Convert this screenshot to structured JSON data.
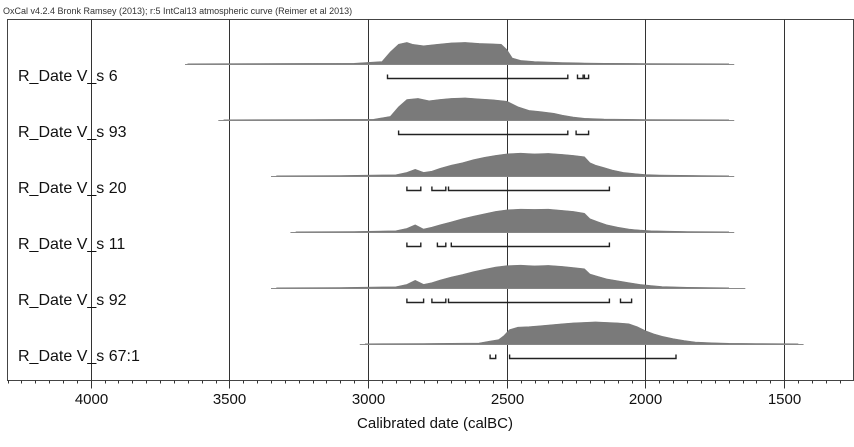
{
  "header_text": "OxCal v4.2.4 Bronk Ramsey (2013); r:5 IntCal13 atmospheric curve (Reimer et al 2013)",
  "chart_data": {
    "type": "area",
    "title": "",
    "xlabel": "Calibrated date (calBC)",
    "ylabel": "",
    "x_reversed": true,
    "xlim": [
      4300,
      1250
    ],
    "x_ticks": [
      4000,
      3500,
      3000,
      2500,
      2000,
      1500
    ],
    "x_tick_labels": [
      "4000",
      "3500",
      "3000",
      "2500",
      "2000",
      "1500"
    ],
    "grid": true,
    "colors": {
      "distribution": "#7a7a7a",
      "line": "#444444",
      "grid": "#333333"
    },
    "series": [
      {
        "name": "R_Date V_s 6",
        "prior_range": [
          3660,
          1680
        ],
        "profile": [
          [
            3650,
            0.01
          ],
          [
            3400,
            0.02
          ],
          [
            3050,
            0.03
          ],
          [
            2950,
            0.1
          ],
          [
            2920,
            0.5
          ],
          [
            2890,
            0.82
          ],
          [
            2860,
            0.9
          ],
          [
            2840,
            0.82
          ],
          [
            2800,
            0.76
          ],
          [
            2750,
            0.82
          ],
          [
            2700,
            0.88
          ],
          [
            2650,
            0.9
          ],
          [
            2600,
            0.86
          ],
          [
            2560,
            0.84
          ],
          [
            2520,
            0.82
          ],
          [
            2500,
            0.6
          ],
          [
            2480,
            0.25
          ],
          [
            2450,
            0.15
          ],
          [
            2400,
            0.1
          ],
          [
            2300,
            0.06
          ],
          [
            2250,
            0.05
          ],
          [
            2220,
            0.04
          ],
          [
            2150,
            0.03
          ],
          [
            2000,
            0.02
          ],
          [
            1700,
            0.01
          ]
        ],
        "ranges": [
          [
            2930,
            2280
          ],
          [
            2245,
            2225
          ],
          [
            2220,
            2205
          ]
        ]
      },
      {
        "name": "R_Date V_s 93",
        "prior_range": [
          3540,
          1680
        ],
        "profile": [
          [
            3520,
            0.01
          ],
          [
            3200,
            0.02
          ],
          [
            2980,
            0.03
          ],
          [
            2920,
            0.15
          ],
          [
            2890,
            0.55
          ],
          [
            2860,
            0.85
          ],
          [
            2820,
            0.9
          ],
          [
            2780,
            0.8
          ],
          [
            2740,
            0.86
          ],
          [
            2700,
            0.9
          ],
          [
            2650,
            0.92
          ],
          [
            2600,
            0.88
          ],
          [
            2550,
            0.84
          ],
          [
            2500,
            0.78
          ],
          [
            2460,
            0.55
          ],
          [
            2420,
            0.4
          ],
          [
            2380,
            0.35
          ],
          [
            2330,
            0.28
          ],
          [
            2300,
            0.2
          ],
          [
            2260,
            0.12
          ],
          [
            2220,
            0.07
          ],
          [
            2150,
            0.04
          ],
          [
            2000,
            0.02
          ],
          [
            1700,
            0.01
          ]
        ],
        "ranges": [
          [
            2890,
            2280
          ],
          [
            2250,
            2205
          ]
        ]
      },
      {
        "name": "R_Date V_s 20",
        "prior_range": [
          3350,
          1680
        ],
        "profile": [
          [
            3330,
            0.01
          ],
          [
            3100,
            0.02
          ],
          [
            2900,
            0.05
          ],
          [
            2860,
            0.15
          ],
          [
            2830,
            0.28
          ],
          [
            2800,
            0.15
          ],
          [
            2770,
            0.2
          ],
          [
            2740,
            0.32
          ],
          [
            2700,
            0.45
          ],
          [
            2660,
            0.55
          ],
          [
            2620,
            0.68
          ],
          [
            2580,
            0.78
          ],
          [
            2540,
            0.86
          ],
          [
            2500,
            0.92
          ],
          [
            2450,
            0.95
          ],
          [
            2400,
            0.92
          ],
          [
            2350,
            0.94
          ],
          [
            2300,
            0.9
          ],
          [
            2260,
            0.86
          ],
          [
            2220,
            0.8
          ],
          [
            2200,
            0.55
          ],
          [
            2180,
            0.45
          ],
          [
            2150,
            0.35
          ],
          [
            2120,
            0.25
          ],
          [
            2080,
            0.15
          ],
          [
            2040,
            0.1
          ],
          [
            2000,
            0.06
          ],
          [
            1950,
            0.04
          ],
          [
            1800,
            0.02
          ],
          [
            1700,
            0.01
          ]
        ],
        "ranges": [
          [
            2860,
            2810
          ],
          [
            2770,
            2720
          ],
          [
            2710,
            2130
          ]
        ]
      },
      {
        "name": "R_Date V_s 11",
        "prior_range": [
          3280,
          1680
        ],
        "profile": [
          [
            3260,
            0.01
          ],
          [
            3050,
            0.02
          ],
          [
            2900,
            0.05
          ],
          [
            2860,
            0.15
          ],
          [
            2830,
            0.3
          ],
          [
            2800,
            0.12
          ],
          [
            2770,
            0.2
          ],
          [
            2740,
            0.3
          ],
          [
            2700,
            0.42
          ],
          [
            2660,
            0.55
          ],
          [
            2620,
            0.66
          ],
          [
            2580,
            0.76
          ],
          [
            2540,
            0.86
          ],
          [
            2500,
            0.92
          ],
          [
            2450,
            0.95
          ],
          [
            2400,
            0.94
          ],
          [
            2350,
            0.95
          ],
          [
            2300,
            0.9
          ],
          [
            2260,
            0.86
          ],
          [
            2220,
            0.78
          ],
          [
            2200,
            0.55
          ],
          [
            2170,
            0.42
          ],
          [
            2140,
            0.3
          ],
          [
            2100,
            0.2
          ],
          [
            2060,
            0.12
          ],
          [
            2020,
            0.08
          ],
          [
            1980,
            0.05
          ],
          [
            1850,
            0.02
          ],
          [
            1700,
            0.01
          ]
        ],
        "ranges": [
          [
            2860,
            2810
          ],
          [
            2750,
            2720
          ],
          [
            2700,
            2130
          ]
        ]
      },
      {
        "name": "R_Date V_s 92",
        "prior_range": [
          3350,
          1640
        ],
        "profile": [
          [
            3330,
            0.01
          ],
          [
            3100,
            0.02
          ],
          [
            2900,
            0.05
          ],
          [
            2860,
            0.15
          ],
          [
            2830,
            0.32
          ],
          [
            2800,
            0.15
          ],
          [
            2770,
            0.22
          ],
          [
            2740,
            0.33
          ],
          [
            2700,
            0.46
          ],
          [
            2660,
            0.56
          ],
          [
            2620,
            0.68
          ],
          [
            2580,
            0.78
          ],
          [
            2540,
            0.87
          ],
          [
            2500,
            0.93
          ],
          [
            2450,
            0.95
          ],
          [
            2400,
            0.92
          ],
          [
            2350,
            0.94
          ],
          [
            2300,
            0.9
          ],
          [
            2260,
            0.85
          ],
          [
            2220,
            0.8
          ],
          [
            2200,
            0.58
          ],
          [
            2170,
            0.48
          ],
          [
            2140,
            0.38
          ],
          [
            2100,
            0.3
          ],
          [
            2060,
            0.22
          ],
          [
            2020,
            0.15
          ],
          [
            1980,
            0.1
          ],
          [
            1940,
            0.06
          ],
          [
            1850,
            0.03
          ],
          [
            1700,
            0.01
          ]
        ],
        "ranges": [
          [
            2860,
            2800
          ],
          [
            2770,
            2720
          ],
          [
            2710,
            2130
          ],
          [
            2090,
            2050
          ]
        ]
      },
      {
        "name": "R_Date V_s 67:1",
        "prior_range": [
          3030,
          1430
        ],
        "profile": [
          [
            3010,
            0.01
          ],
          [
            2800,
            0.02
          ],
          [
            2600,
            0.04
          ],
          [
            2560,
            0.12
          ],
          [
            2530,
            0.18
          ],
          [
            2510,
            0.35
          ],
          [
            2490,
            0.6
          ],
          [
            2460,
            0.7
          ],
          [
            2420,
            0.72
          ],
          [
            2380,
            0.76
          ],
          [
            2340,
            0.8
          ],
          [
            2300,
            0.84
          ],
          [
            2260,
            0.88
          ],
          [
            2220,
            0.9
          ],
          [
            2180,
            0.92
          ],
          [
            2140,
            0.9
          ],
          [
            2100,
            0.88
          ],
          [
            2060,
            0.84
          ],
          [
            2030,
            0.72
          ],
          [
            2000,
            0.55
          ],
          [
            1970,
            0.42
          ],
          [
            1940,
            0.32
          ],
          [
            1900,
            0.22
          ],
          [
            1860,
            0.14
          ],
          [
            1820,
            0.08
          ],
          [
            1760,
            0.05
          ],
          [
            1700,
            0.03
          ],
          [
            1600,
            0.02
          ],
          [
            1450,
            0.01
          ]
        ],
        "ranges": [
          [
            2560,
            2540
          ],
          [
            2490,
            1890
          ]
        ]
      }
    ]
  }
}
